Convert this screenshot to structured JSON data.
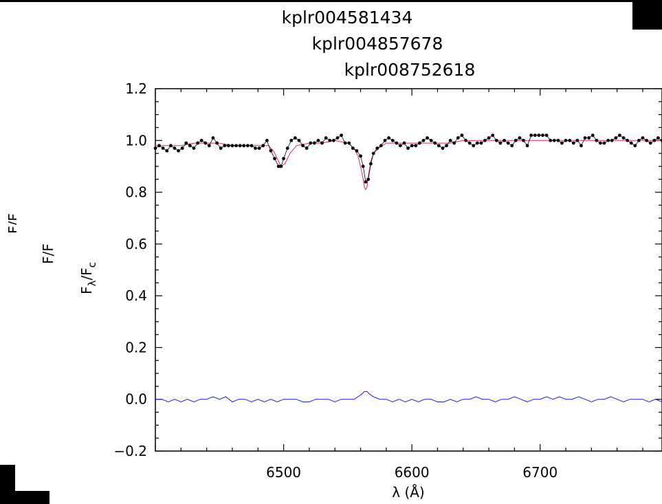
{
  "chart_data": {
    "type": "line",
    "titles": [
      "kplr004581434",
      "kplr004857678",
      "kplr008752618"
    ],
    "xlabel": "λ (Å)",
    "ylabel_main": "F",
    "ylabel_sub": "λ",
    "ylabel_slash": "/F",
    "ylabel_sub2": "c",
    "xlim": [
      6400,
      6795
    ],
    "ylim": [
      -0.2,
      1.2
    ],
    "xticks": [
      6500,
      6600,
      6700
    ],
    "yticks": [
      "−0.2",
      "0.0",
      "0.2",
      "0.4",
      "0.6",
      "0.8",
      "1.0",
      "1.2"
    ],
    "ytick_values": [
      -0.2,
      0.0,
      0.2,
      0.4,
      0.6,
      0.8,
      1.0,
      1.2
    ],
    "colors": {
      "observed": "#000000",
      "model": "#e8205a",
      "residual": "#1a1aff"
    },
    "series": [
      {
        "kind": "points",
        "x": [
          6400,
          6403,
          6406,
          6409,
          6412,
          6415,
          6418,
          6421,
          6424,
          6427,
          6430,
          6433,
          6436,
          6439,
          6442,
          6445,
          6448,
          6451,
          6454,
          6457,
          6460,
          6463,
          6466,
          6469,
          6472,
          6475,
          6478,
          6481,
          6484,
          6487,
          6490,
          6493,
          6496,
          6498,
          6500,
          6503,
          6506,
          6509,
          6512,
          6515,
          6518,
          6521,
          6524,
          6527,
          6530,
          6533,
          6536,
          6539,
          6542,
          6545,
          6548,
          6551,
          6554,
          6557,
          6560,
          6562,
          6564,
          6566,
          6568,
          6570,
          6573,
          6576,
          6579,
          6582,
          6585,
          6588,
          6591,
          6594,
          6597,
          6600,
          6603,
          6606,
          6609,
          6612,
          6615,
          6618,
          6621,
          6624,
          6627,
          6630,
          6633,
          6636,
          6639,
          6642,
          6645,
          6648,
          6651,
          6654,
          6657,
          6660,
          6663,
          6666,
          6669,
          6672,
          6675,
          6678,
          6681,
          6684,
          6687,
          6690,
          6693,
          6696,
          6699,
          6702,
          6705,
          6708,
          6711,
          6714,
          6717,
          6720,
          6723,
          6726,
          6729,
          6732,
          6735,
          6738,
          6741,
          6744,
          6747,
          6750,
          6753,
          6756,
          6759,
          6762,
          6765,
          6768,
          6771,
          6774,
          6777,
          6780,
          6783,
          6786,
          6789,
          6792,
          6795
        ],
        "y": [
          0.97,
          0.98,
          0.97,
          0.96,
          0.98,
          0.97,
          0.96,
          0.97,
          0.99,
          0.98,
          0.97,
          0.99,
          1.0,
          0.99,
          0.98,
          1.01,
          0.99,
          0.97,
          0.98,
          0.98,
          0.98,
          0.98,
          0.98,
          0.98,
          0.98,
          0.98,
          0.97,
          0.97,
          0.98,
          1.0,
          0.96,
          0.93,
          0.9,
          0.9,
          0.93,
          0.97,
          1.0,
          1.01,
          1.0,
          0.98,
          0.97,
          0.99,
          0.99,
          1.0,
          0.99,
          1.01,
          1.0,
          1.0,
          1.01,
          1.02,
          0.99,
          0.99,
          0.97,
          0.96,
          0.94,
          0.9,
          0.84,
          0.85,
          0.91,
          0.95,
          0.97,
          0.98,
          1.0,
          1.01,
          1.0,
          0.99,
          0.98,
          0.99,
          0.97,
          0.98,
          0.98,
          0.99,
          1.0,
          1.01,
          1.0,
          0.99,
          0.98,
          0.97,
          0.98,
          1.0,
          0.99,
          1.01,
          1.02,
          1.0,
          0.99,
          0.98,
          0.99,
          0.99,
          1.0,
          1.01,
          1.02,
          1.0,
          0.99,
          1.0,
          0.99,
          0.98,
          1.0,
          1.01,
          1.0,
          0.98,
          1.02,
          1.02,
          1.02,
          1.02,
          1.02,
          1.0,
          1.0,
          1.0,
          0.99,
          1.0,
          1.0,
          0.99,
          1.0,
          0.98,
          1.01,
          1.01,
          1.02,
          1.0,
          0.99,
          0.99,
          1.0,
          1.0,
          1.01,
          1.02,
          1.01,
          1.0,
          0.99,
          0.98,
          1.0,
          1.01,
          1.0,
          0.99,
          1.0,
          1.01,
          1.0
        ]
      },
      {
        "kind": "line",
        "x": [
          6400,
          6410,
          6420,
          6430,
          6440,
          6450,
          6460,
          6470,
          6480,
          6488,
          6492,
          6495,
          6498,
          6501,
          6505,
          6510,
          6520,
          6530,
          6540,
          6550,
          6555,
          6558,
          6560,
          6562,
          6563,
          6564,
          6565,
          6566,
          6568,
          6570,
          6574,
          6580,
          6590,
          6600,
          6610,
          6620,
          6630,
          6640,
          6650,
          6660,
          6670,
          6680,
          6690,
          6700,
          6710,
          6720,
          6730,
          6740,
          6750,
          6760,
          6770,
          6780,
          6790,
          6795
        ],
        "y": [
          0.98,
          0.98,
          0.98,
          0.99,
          0.99,
          0.99,
          0.98,
          0.98,
          0.98,
          0.98,
          0.96,
          0.93,
          0.9,
          0.91,
          0.95,
          0.98,
          0.99,
          0.99,
          1.0,
          0.99,
          0.97,
          0.94,
          0.9,
          0.85,
          0.82,
          0.81,
          0.82,
          0.86,
          0.92,
          0.95,
          0.97,
          0.99,
          0.99,
          0.99,
          0.99,
          0.99,
          0.99,
          1.0,
          1.0,
          1.0,
          1.0,
          1.0,
          1.0,
          1.0,
          1.0,
          1.0,
          1.0,
          1.0,
          1.0,
          1.0,
          1.0,
          1.0,
          1.0,
          1.0
        ]
      },
      {
        "kind": "line",
        "x": [
          6400,
          6405,
          6410,
          6415,
          6420,
          6425,
          6430,
          6435,
          6440,
          6445,
          6450,
          6455,
          6460,
          6465,
          6470,
          6475,
          6480,
          6485,
          6490,
          6495,
          6500,
          6505,
          6510,
          6515,
          6520,
          6525,
          6530,
          6535,
          6540,
          6545,
          6550,
          6555,
          6558,
          6561,
          6563,
          6565,
          6567,
          6570,
          6575,
          6580,
          6585,
          6590,
          6595,
          6600,
          6605,
          6610,
          6615,
          6620,
          6625,
          6630,
          6635,
          6640,
          6645,
          6650,
          6655,
          6660,
          6665,
          6670,
          6675,
          6680,
          6685,
          6690,
          6695,
          6700,
          6705,
          6710,
          6715,
          6720,
          6725,
          6730,
          6735,
          6740,
          6745,
          6750,
          6755,
          6760,
          6765,
          6770,
          6775,
          6780,
          6785,
          6790,
          6795
        ],
        "y": [
          0.0,
          0.0,
          -0.01,
          0.0,
          -0.01,
          0.0,
          -0.01,
          0.0,
          0.0,
          0.01,
          0.0,
          0.01,
          -0.01,
          0.0,
          0.0,
          -0.01,
          0.0,
          -0.01,
          0.0,
          -0.01,
          0.0,
          0.0,
          0.0,
          -0.01,
          -0.01,
          0.0,
          0.0,
          0.0,
          -0.01,
          0.0,
          0.0,
          0.0,
          0.01,
          0.02,
          0.03,
          0.03,
          0.02,
          0.01,
          0.0,
          0.0,
          -0.01,
          0.0,
          -0.01,
          0.0,
          -0.01,
          0.0,
          0.0,
          -0.01,
          -0.01,
          0.0,
          -0.01,
          0.0,
          0.0,
          0.01,
          0.0,
          0.0,
          -0.01,
          0.0,
          0.0,
          0.01,
          0.0,
          -0.01,
          0.0,
          0.0,
          0.01,
          0.0,
          0.01,
          0.0,
          0.0,
          0.01,
          0.0,
          -0.01,
          0.0,
          0.0,
          0.01,
          0.0,
          -0.01,
          0.0,
          0.0,
          0.0,
          -0.01,
          0.0,
          -0.01
        ]
      }
    ]
  },
  "fragments": {
    "f_a_1": "F",
    "f_a_2": "/F",
    "f_b_1": "F",
    "f_b_2": "/F"
  }
}
